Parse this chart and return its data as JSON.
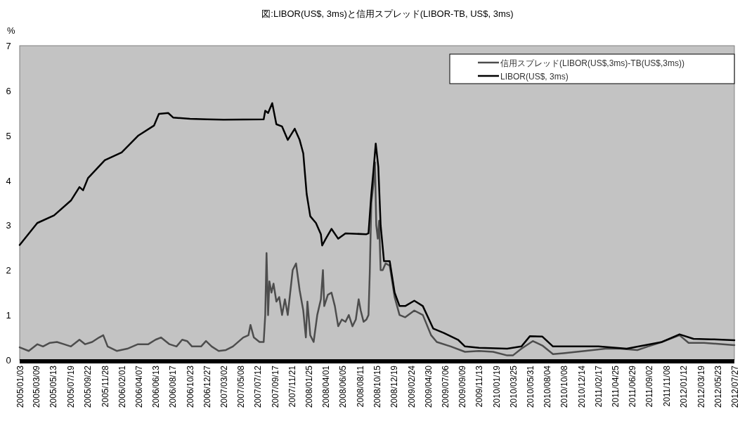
{
  "chart_data": {
    "type": "line",
    "title": "図:LIBOR(US$, 3ms)と信用スプレッド(LIBOR-TB, US$, 3ms)",
    "ylabel": "%",
    "legend": "top right",
    "xlim": [
      "2005-01-03",
      "2012-07-27"
    ],
    "ylim": [
      0,
      7
    ],
    "yticks": [
      0,
      1,
      2,
      3,
      4,
      5,
      6,
      7
    ],
    "xticks": [
      {
        "value": "2005-01-03",
        "label": "2005/01/03"
      },
      {
        "value": "2005-03-09",
        "label": "2005/03/09"
      },
      {
        "value": "2005-05-13",
        "label": "2005/05/13"
      },
      {
        "value": "2005-07-19",
        "label": "2005/07/19"
      },
      {
        "value": "2005-09-22",
        "label": "2005/09/22"
      },
      {
        "value": "2005-11-28",
        "label": "2005/11/28"
      },
      {
        "value": "2006-02-01",
        "label": "2006/02/01"
      },
      {
        "value": "2006-04-07",
        "label": "2006/04/07"
      },
      {
        "value": "2006-06-13",
        "label": "2006/06/13"
      },
      {
        "value": "2006-08-17",
        "label": "2006/08/17"
      },
      {
        "value": "2006-10-23",
        "label": "2006/10/23"
      },
      {
        "value": "2006-12-27",
        "label": "2006/12/27"
      },
      {
        "value": "2007-03-02",
        "label": "2007/03/02"
      },
      {
        "value": "2007-05-08",
        "label": "2007/05/08"
      },
      {
        "value": "2007-07-12",
        "label": "2007/07/12"
      },
      {
        "value": "2007-09-17",
        "label": "2007/09/17"
      },
      {
        "value": "2007-11-21",
        "label": "2007/11/21"
      },
      {
        "value": "2008-01-25",
        "label": "2008/01/25"
      },
      {
        "value": "2008-04-01",
        "label": "2008/04/01"
      },
      {
        "value": "2008-06-05",
        "label": "2008/06/05"
      },
      {
        "value": "2008-08-11",
        "label": "2008/08/11"
      },
      {
        "value": "2008-10-15",
        "label": "2008/10/15"
      },
      {
        "value": "2008-12-19",
        "label": "2008/12/19"
      },
      {
        "value": "2009-02-24",
        "label": "2009/02/24"
      },
      {
        "value": "2009-04-30",
        "label": "2009/04/30"
      },
      {
        "value": "2009-07-06",
        "label": "2009/07/06"
      },
      {
        "value": "2009-09-09",
        "label": "2009/09/09"
      },
      {
        "value": "2009-11-13",
        "label": "2009/11/13"
      },
      {
        "value": "2010-01-19",
        "label": "2010/01/19"
      },
      {
        "value": "2010-03-25",
        "label": "2010/03/25"
      },
      {
        "value": "2010-05-31",
        "label": "2010/05/31"
      },
      {
        "value": "2010-08-04",
        "label": "2010/08/04"
      },
      {
        "value": "2010-10-08",
        "label": "2010/10/08"
      },
      {
        "value": "2010-12-14",
        "label": "2010/12/14"
      },
      {
        "value": "2011-02-17",
        "label": "2011/02/17"
      },
      {
        "value": "2011-04-25",
        "label": "2011/04/25"
      },
      {
        "value": "2011-06-29",
        "label": "2011/06/29"
      },
      {
        "value": "2011-09-02",
        "label": "2011/09/02"
      },
      {
        "value": "2011-11-08",
        "label": "2011/11/08"
      },
      {
        "value": "2012-01-12",
        "label": "2012/01/12"
      },
      {
        "value": "2012-03-19",
        "label": "2012/03/19"
      },
      {
        "value": "2012-05-23",
        "label": "2012/05/23"
      },
      {
        "value": "2012-07-27",
        "label": "2012/07/27"
      }
    ],
    "series": [
      {
        "name": "信用スプレッド(LIBOR(US$,3ms)-TB(US$,3ms))",
        "color": "#4d4d4d",
        "x": [
          "2005-01-03",
          "2005-02-07",
          "2005-03-12",
          "2005-04-03",
          "2005-04-30",
          "2005-05-27",
          "2005-06-23",
          "2005-07-20",
          "2005-08-22",
          "2005-09-13",
          "2005-10-10",
          "2005-11-06",
          "2005-11-22",
          "2005-12-09",
          "2006-01-13",
          "2006-02-23",
          "2006-04-05",
          "2006-05-15",
          "2006-06-12",
          "2006-07-03",
          "2006-08-05",
          "2006-09-01",
          "2006-09-23",
          "2006-10-12",
          "2006-10-31",
          "2006-12-05",
          "2006-12-24",
          "2007-01-15",
          "2007-02-11",
          "2007-03-11",
          "2007-04-07",
          "2007-05-17",
          "2007-06-06",
          "2007-06-14",
          "2007-06-27",
          "2007-07-19",
          "2007-08-04",
          "2007-08-10",
          "2007-08-15",
          "2007-08-21",
          "2007-08-26",
          "2007-09-03",
          "2007-09-11",
          "2007-09-22",
          "2007-10-03",
          "2007-10-14",
          "2007-10-25",
          "2007-11-05",
          "2007-11-24",
          "2007-12-07",
          "2007-12-21",
          "2008-01-04",
          "2008-01-14",
          "2008-01-20",
          "2008-01-31",
          "2008-02-13",
          "2008-02-27",
          "2008-03-12",
          "2008-03-20",
          "2008-03-25",
          "2008-04-08",
          "2008-04-22",
          "2008-05-05",
          "2008-05-18",
          "2008-06-01",
          "2008-06-15",
          "2008-06-28",
          "2008-07-12",
          "2008-07-25",
          "2008-08-05",
          "2008-08-13",
          "2008-08-24",
          "2008-09-04",
          "2008-09-12",
          "2008-09-17",
          "2008-09-23",
          "2008-10-01",
          "2008-10-07",
          "2008-10-12",
          "2008-10-18",
          "2008-10-23",
          "2008-10-29",
          "2008-11-06",
          "2008-11-17",
          "2008-12-03",
          "2008-12-22",
          "2009-01-10",
          "2009-02-01",
          "2009-03-08",
          "2009-04-10",
          "2009-05-12",
          "2009-06-03",
          "2009-07-27",
          "2009-09-20",
          "2009-11-13",
          "2010-01-07",
          "2010-03-02",
          "2010-03-24",
          "2010-04-26",
          "2010-06-09",
          "2010-07-16",
          "2010-08-26",
          "2010-10-05",
          "2010-12-27",
          "2011-03-17",
          "2011-05-13",
          "2011-07-18",
          "2011-08-28",
          "2011-10-21",
          "2011-12-28",
          "2012-02-01",
          "2012-04-01",
          "2012-07-27"
        ],
        "values": [
          0.28,
          0.2,
          0.35,
          0.3,
          0.38,
          0.4,
          0.35,
          0.3,
          0.45,
          0.35,
          0.4,
          0.5,
          0.55,
          0.3,
          0.2,
          0.25,
          0.35,
          0.35,
          0.45,
          0.5,
          0.35,
          0.3,
          0.45,
          0.42,
          0.3,
          0.3,
          0.42,
          0.3,
          0.2,
          0.22,
          0.3,
          0.5,
          0.55,
          0.78,
          0.5,
          0.4,
          0.4,
          1.0,
          2.38,
          1.0,
          1.75,
          1.5,
          1.7,
          1.3,
          1.4,
          1.0,
          1.35,
          1.0,
          2.0,
          2.15,
          1.55,
          1.1,
          0.5,
          1.3,
          0.55,
          0.4,
          1.0,
          1.35,
          2.0,
          1.2,
          1.45,
          1.5,
          1.2,
          0.75,
          0.9,
          0.85,
          1.0,
          0.75,
          0.9,
          1.35,
          1.1,
          0.85,
          0.9,
          1.0,
          1.95,
          3.5,
          3.9,
          4.4,
          3.0,
          2.7,
          3.1,
          2.0,
          2.0,
          2.15,
          2.1,
          1.4,
          1.0,
          0.95,
          1.1,
          1.0,
          0.55,
          0.4,
          0.3,
          0.18,
          0.2,
          0.18,
          0.1,
          0.1,
          0.25,
          0.42,
          0.32,
          0.13,
          0.15,
          0.2,
          0.25,
          0.25,
          0.22,
          0.3,
          0.4,
          0.55,
          0.38,
          0.38,
          0.33
        ]
      },
      {
        "name": "LIBOR(US$, 3ms)",
        "color": "#000000",
        "x": [
          "2005-01-03",
          "2005-03-12",
          "2005-05-16",
          "2005-07-20",
          "2005-08-22",
          "2005-09-05",
          "2005-09-24",
          "2005-11-28",
          "2006-02-01",
          "2006-04-07",
          "2006-06-06",
          "2006-06-25",
          "2006-07-31",
          "2006-08-19",
          "2006-10-23",
          "2006-12-28",
          "2007-03-02",
          "2007-08-04",
          "2007-08-10",
          "2007-08-21",
          "2007-09-06",
          "2007-09-22",
          "2007-10-14",
          "2007-11-05",
          "2007-12-02",
          "2007-12-21",
          "2008-01-04",
          "2008-01-17",
          "2008-01-31",
          "2008-02-22",
          "2008-03-12",
          "2008-03-17",
          "2008-03-31",
          "2008-04-22",
          "2008-05-18",
          "2008-06-15",
          "2008-09-04",
          "2008-09-12",
          "2008-09-23",
          "2008-10-01",
          "2008-10-10",
          "2008-10-20",
          "2008-10-29",
          "2008-11-11",
          "2008-12-03",
          "2008-12-22",
          "2009-01-10",
          "2009-02-01",
          "2009-03-08",
          "2009-04-10",
          "2009-05-20",
          "2009-06-30",
          "2009-08-24",
          "2009-09-20",
          "2009-11-13",
          "2010-03-02",
          "2010-04-26",
          "2010-05-29",
          "2010-07-16",
          "2010-08-26",
          "2010-11-29",
          "2011-02-18",
          "2011-06-07",
          "2011-10-21",
          "2011-12-28",
          "2012-02-20",
          "2012-04-28",
          "2012-07-27"
        ],
        "values": [
          2.56,
          3.05,
          3.22,
          3.55,
          3.85,
          3.78,
          4.05,
          4.45,
          4.62,
          5.0,
          5.22,
          5.48,
          5.5,
          5.4,
          5.37,
          5.36,
          5.35,
          5.36,
          5.55,
          5.5,
          5.72,
          5.25,
          5.2,
          4.9,
          5.15,
          4.9,
          4.6,
          3.7,
          3.2,
          3.05,
          2.8,
          2.55,
          2.7,
          2.92,
          2.7,
          2.82,
          2.8,
          2.82,
          3.7,
          4.2,
          4.82,
          4.3,
          3.0,
          2.2,
          2.2,
          1.5,
          1.2,
          1.2,
          1.32,
          1.2,
          0.7,
          0.6,
          0.45,
          0.3,
          0.27,
          0.25,
          0.3,
          0.53,
          0.52,
          0.3,
          0.3,
          0.3,
          0.25,
          0.4,
          0.57,
          0.47,
          0.46,
          0.44
        ]
      }
    ]
  }
}
